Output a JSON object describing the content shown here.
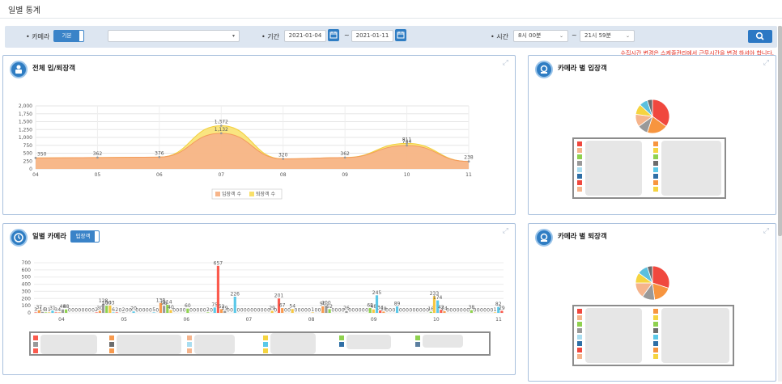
{
  "page": {
    "title": "일별 통계"
  },
  "filters": {
    "camera_label": "• 카메라",
    "toggle_label": "기본",
    "camera_select_value": "",
    "period_label": "• 기간",
    "date_from": "2021-01-04",
    "date_sep": "~",
    "date_to": "2021-01-11",
    "time_label": "• 시간",
    "time_from": "8시 00분",
    "time_sep": "~",
    "time_to": "21시 59분",
    "warning": "수집시간 변경은 스케줄관리에서 근무시간을 변경 하셔야 합니다."
  },
  "panels": {
    "total": {
      "title": "전체 입/퇴장객",
      "legend_in": "입장객 수",
      "legend_out": "퇴장객 수"
    },
    "daily_camera": {
      "title": "일별 카메라",
      "toggle_label": "입장객"
    },
    "camera_in": {
      "title": "카메라 별 입장객"
    },
    "camera_out": {
      "title": "카메라 별 퇴장객"
    }
  },
  "chart_data": [
    {
      "type": "area",
      "x": [
        "04",
        "05",
        "06",
        "07",
        "08",
        "09",
        "10",
        "11"
      ],
      "ylim": [
        0,
        2000
      ],
      "yticks": [
        "0",
        "250",
        "500",
        "750",
        "1,000",
        "1,250",
        "1,500",
        "1,750",
        "2,000"
      ],
      "series": [
        {
          "name": "입장객 수",
          "values": [
            350,
            362,
            376,
            1132,
            320,
            362,
            744,
            238
          ],
          "color": "#f7b58a"
        },
        {
          "name": "퇴장객 수",
          "values": [
            350,
            362,
            376,
            1372,
            320,
            362,
            811,
            238
          ],
          "color": "#f9e06a"
        }
      ],
      "data_labels": [
        "350",
        "362",
        "376",
        "1,132",
        "1,372",
        "320",
        "362",
        "811",
        "744",
        "238"
      ],
      "legend": "bottom",
      "grid": true
    },
    {
      "type": "bar",
      "x": [
        "04",
        "05",
        "06",
        "07",
        "08",
        "09",
        "10",
        "11"
      ],
      "ylim": [
        0,
        700
      ],
      "yticks": [
        "0",
        "100",
        "200",
        "300",
        "400",
        "500",
        "600",
        "700"
      ],
      "bars": [
        3,
        37,
        14,
        3,
        1,
        31,
        3,
        4,
        48,
        48,
        0,
        0,
        0,
        0,
        0,
        0,
        0,
        0,
        2,
        30,
        128,
        100,
        103,
        6,
        2,
        0,
        2,
        0,
        0,
        20,
        0,
        0,
        0,
        0,
        0,
        5,
        0,
        138,
        98,
        114,
        40,
        0,
        0,
        0,
        0,
        60,
        0,
        0,
        0,
        0,
        0,
        2,
        0,
        75,
        657,
        52,
        29,
        0,
        0,
        226,
        0,
        0,
        0,
        0,
        0,
        0,
        0,
        0,
        0,
        0,
        29,
        0,
        201,
        67,
        0,
        0,
        54,
        0,
        0,
        0,
        0,
        0,
        1,
        0,
        0,
        90,
        100,
        52,
        0,
        0,
        0,
        0,
        26,
        0,
        0,
        0,
        0,
        0,
        0,
        68,
        48,
        245,
        34,
        18,
        0,
        0,
        0,
        89,
        0,
        0,
        0,
        0,
        0,
        0,
        0,
        0,
        0,
        16,
        233,
        174,
        42,
        24,
        0,
        0,
        0,
        0,
        0,
        0,
        0,
        38,
        0,
        0,
        0,
        0,
        0,
        0,
        1,
        82,
        29
      ],
      "bar_colors": [
        "#fb5b4e",
        "#f79a4e",
        "#999999",
        "#8fd14f",
        "#f6c744",
        "#5bc8e8"
      ],
      "legend": "bottom"
    },
    {
      "type": "pie",
      "title": "",
      "values": [
        35,
        20,
        10,
        12,
        10,
        8,
        5
      ],
      "colors": [
        "#f0483e",
        "#f7953f",
        "#999999",
        "#f5b48c",
        "#f5d440",
        "#5bc0de",
        "#6c6c6c"
      ]
    },
    {
      "type": "pie",
      "title": "",
      "values": [
        30,
        18,
        12,
        15,
        10,
        10,
        5
      ],
      "colors": [
        "#f0483e",
        "#f7953f",
        "#999999",
        "#f5b48c",
        "#f5d440",
        "#5bc0de",
        "#6c6c6c"
      ]
    }
  ],
  "colors": {
    "accent": "#2f7dc3",
    "warning": "#e3291c",
    "panel_border": "#a9c0dd"
  },
  "icons": {
    "calendar": "calendar-icon",
    "search": "search-icon",
    "expand": "expand-icon"
  }
}
